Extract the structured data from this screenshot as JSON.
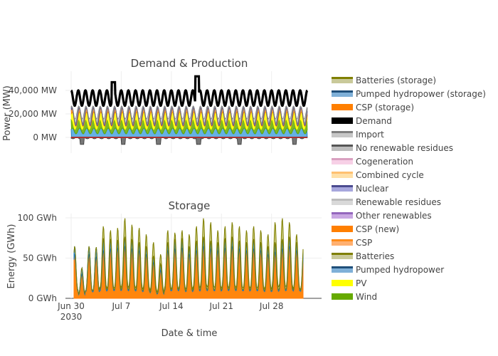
{
  "chart_data": [
    {
      "type": "area",
      "title": "Demand & Production",
      "xlabel": "",
      "ylabel": "Power (MW)",
      "ylim": [
        -15000,
        55000
      ],
      "yticks": [
        0,
        20000,
        40000
      ],
      "ytick_labels": [
        "0 MW",
        "20,000 MW",
        "40,000 MW"
      ],
      "x_range": [
        "2030-06-30",
        "2030-08-02"
      ],
      "grid": true,
      "legend_position": "right",
      "series": [
        {
          "name": "Batteries (storage)",
          "color": "#7f7f00",
          "note": "negative charging",
          "days": [
            [
              0,
              -1500
            ],
            [
              5,
              -800
            ],
            [
              10,
              -1200
            ],
            [
              15,
              -1000
            ],
            [
              20,
              -1500
            ],
            [
              25,
              -1200
            ],
            [
              30,
              -1000
            ],
            [
              33,
              -1200
            ]
          ]
        },
        {
          "name": "Wind",
          "color": "#66aa00",
          "values_desc": "mid-band stacked"
        },
        {
          "name": "Pumped hydropower",
          "color": "#1f77b4",
          "values_desc": "base"
        },
        {
          "name": "Demand",
          "color": "#000000",
          "values_desc": "daily peaks ~40,000, troughs ~28,000"
        }
      ]
    },
    {
      "type": "area",
      "title": "Storage",
      "xlabel": "Date & time",
      "ylabel": "Energy (GWh)",
      "ylim": [
        0,
        105
      ],
      "yticks": [
        0,
        50,
        100
      ],
      "ytick_labels": [
        "0 GWh",
        "50 GWh",
        "100 GWh"
      ],
      "xticks": [
        "2030-06-30",
        "2030-07-07",
        "2030-07-14",
        "2030-07-21",
        "2030-07-28"
      ],
      "xtick_labels": [
        "Jun 30\n2030",
        "Jul 7",
        "Jul 14",
        "Jul 21",
        "Jul 28"
      ],
      "grid": true,
      "series": [
        {
          "name": "CSP",
          "color": "#ff7f0e",
          "daily_peaks": [
            55,
            30,
            55,
            52,
            60,
            62,
            63,
            65,
            62,
            60,
            55,
            45,
            35,
            60,
            62,
            63,
            55,
            60,
            65,
            62,
            60,
            63,
            65,
            62,
            60,
            62,
            60,
            55,
            58,
            62,
            65,
            60,
            55
          ]
        },
        {
          "name": "Pumped hydropower",
          "color": "#1f77b4",
          "daily_peaks": [
            10,
            8,
            10,
            12,
            15,
            12,
            10,
            12,
            12,
            10,
            10,
            8,
            8,
            10,
            12,
            12,
            10,
            12,
            12,
            10,
            10,
            12,
            12,
            10,
            10,
            12,
            10,
            10,
            12,
            12,
            12,
            10,
            10
          ]
        },
        {
          "name": "Batteries",
          "color": "#7f7f00",
          "daily_peaks": [
            55,
            25,
            58,
            62,
            90,
            85,
            88,
            100,
            92,
            88,
            80,
            70,
            55,
            85,
            82,
            85,
            80,
            90,
            100,
            95,
            85,
            90,
            95,
            90,
            85,
            90,
            85,
            80,
            95,
            100,
            95,
            80,
            70
          ]
        }
      ]
    }
  ],
  "legend": {
    "items": [
      {
        "label": "Batteries (storage)",
        "fill": "#c9c99a",
        "line": "#7f7f00"
      },
      {
        "label": "Pumped hydropower (storage)",
        "fill": "#7fb0d8",
        "line": "#1f4f7a"
      },
      {
        "label": "CSP (storage)",
        "fill": "#ff7f00",
        "line": "#ff7f00"
      },
      {
        "label": "Demand",
        "fill": "#000000",
        "line": "#000000"
      },
      {
        "label": "Import",
        "fill": "#c7c7c7",
        "line": "#7f7f7f"
      },
      {
        "label": "No renewable residues",
        "fill": "#bdbdbd",
        "line": "#555555"
      },
      {
        "label": "Cogeneration",
        "fill": "#f7d0e6",
        "line": "#d9a0c0"
      },
      {
        "label": "Combined cycle",
        "fill": "#ffe0a8",
        "line": "#ffc070"
      },
      {
        "label": "Nuclear",
        "fill": "#a7a7dd",
        "line": "#4b4b8f"
      },
      {
        "label": "Renewable residues",
        "fill": "#d9d9d9",
        "line": "#bcbcbc"
      },
      {
        "label": "Other renewables",
        "fill": "#c9a7e2",
        "line": "#9467bd"
      },
      {
        "label": "CSP (new)",
        "fill": "#ff7f00",
        "line": "#ff7f00"
      },
      {
        "label": "CSP",
        "fill": "#ffb070",
        "line": "#ff8c1a"
      },
      {
        "label": "Batteries",
        "fill": "#c9c99a",
        "line": "#7f7f00"
      },
      {
        "label": "Pumped hydropower",
        "fill": "#7fb0d8",
        "line": "#1f4f7a"
      },
      {
        "label": "PV",
        "fill": "#ffff00",
        "line": "#ffff00"
      },
      {
        "label": "Wind",
        "fill": "#66aa00",
        "line": "#66aa00"
      }
    ]
  }
}
